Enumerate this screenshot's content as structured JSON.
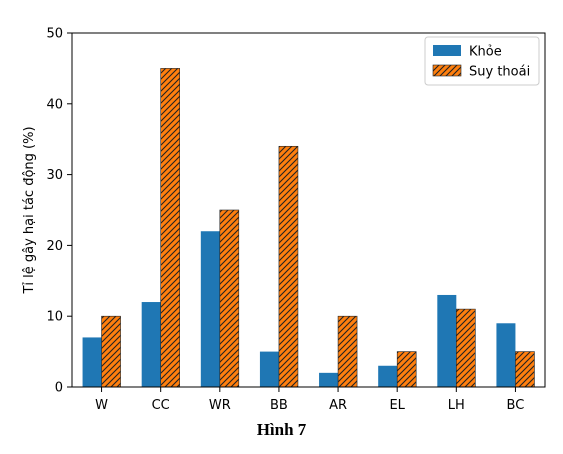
{
  "chart_data": {
    "type": "bar",
    "categories": [
      "W",
      "CC",
      "WR",
      "BB",
      "AR",
      "EL",
      "LH",
      "BC"
    ],
    "series": [
      {
        "name": "Khỏe",
        "values": [
          7,
          12,
          22,
          5,
          2,
          3,
          13,
          9
        ],
        "color": "#1f77b4",
        "pattern": "solid"
      },
      {
        "name": "Suy thoái",
        "values": [
          10,
          45,
          25,
          34,
          10,
          5,
          11,
          5
        ],
        "color": "#ff7f0e",
        "pattern": "hatch"
      }
    ],
    "ylabel": "Tỉ lệ gây hại tác động (%)",
    "ylim": [
      0,
      50
    ],
    "yticks": [
      0,
      10,
      20,
      30,
      40,
      50
    ],
    "grid": false,
    "legend_position": "top-right"
  },
  "caption": "Hình 7"
}
